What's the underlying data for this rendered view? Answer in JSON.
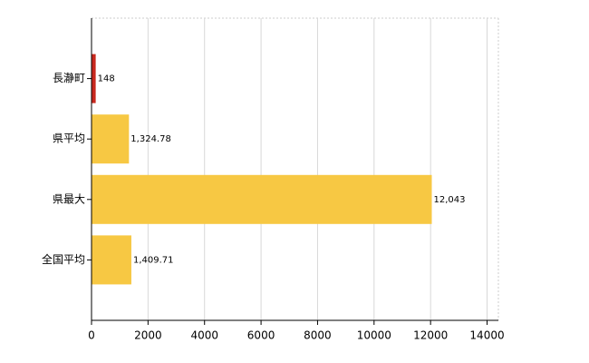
{
  "chart_data": {
    "type": "hbar",
    "categories": [
      "長瀞町",
      "県平均",
      "県最大",
      "全国平均"
    ],
    "values": [
      148,
      1324.78,
      12043,
      1409.71
    ],
    "value_labels": [
      "148",
      "1,324.78",
      "12,043",
      "1,409.71"
    ],
    "colors": [
      "#c8281e",
      "#f7c843",
      "#f7c843",
      "#f7c843"
    ],
    "xlim": [
      0,
      14400
    ],
    "xticks": [
      0,
      2000,
      4000,
      6000,
      8000,
      10000,
      12000,
      14000
    ],
    "grid": true
  }
}
